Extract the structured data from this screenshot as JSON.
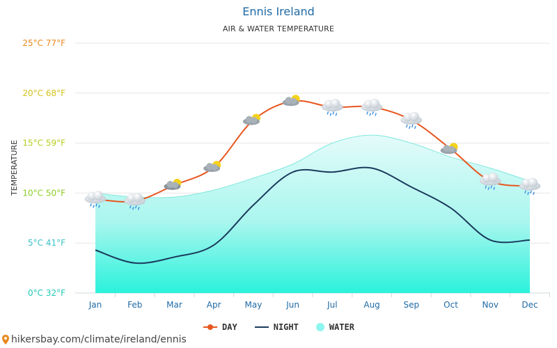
{
  "chart_data": {
    "type": "line",
    "title": "Ennis Ireland",
    "subtitle": "AIR & WATER TEMPERATURE",
    "ylabel": "TEMPERATURE",
    "ylim": [
      0,
      25
    ],
    "grid": true,
    "categories": [
      "Jan",
      "Feb",
      "Mar",
      "Apr",
      "May",
      "Jun",
      "Jul",
      "Aug",
      "Sep",
      "Oct",
      "Nov",
      "Dec"
    ],
    "y_ticks": [
      {
        "value": 0,
        "label": "0°C 32°F",
        "color": "#1fc8b8"
      },
      {
        "value": 5,
        "label": "5°C 41°F",
        "color": "#3cc0c8"
      },
      {
        "value": 10,
        "label": "10°C 50°F",
        "color": "#8ccc2a"
      },
      {
        "value": 15,
        "label": "15°C 59°F",
        "color": "#b6cc1e"
      },
      {
        "value": 20,
        "label": "20°C 68°F",
        "color": "#d4c21a"
      },
      {
        "value": 25,
        "label": "25°C 77°F",
        "color": "#e8891e"
      }
    ],
    "series": [
      {
        "name": "DAY",
        "color": "#e8561e",
        "values": [
          9.4,
          9.2,
          10.8,
          12.6,
          17.3,
          19.2,
          18.6,
          18.6,
          17.3,
          14.4,
          11.2,
          10.7
        ]
      },
      {
        "name": "NIGHT",
        "color": "#1a3a5c",
        "values": [
          4.3,
          3.0,
          3.6,
          4.8,
          8.8,
          12.1,
          12.1,
          12.5,
          10.6,
          8.5,
          5.3,
          5.3
        ]
      },
      {
        "name": "WATER",
        "color": "#8ff5ef",
        "values": [
          10.0,
          9.6,
          9.6,
          10.3,
          11.5,
          12.9,
          15.0,
          15.8,
          15.0,
          13.6,
          12.5,
          11.2
        ]
      }
    ],
    "weather_icons": [
      "rain",
      "rain",
      "partly-cloudy",
      "partly-sunny",
      "partly-sunny",
      "partly-sunny",
      "rain",
      "rain",
      "rain",
      "partly-sunny",
      "rain",
      "rain"
    ]
  },
  "legend": {
    "day": "DAY",
    "night": "NIGHT",
    "water": "WATER"
  },
  "credit": "hikersbay.com/climate/ireland/ennis"
}
